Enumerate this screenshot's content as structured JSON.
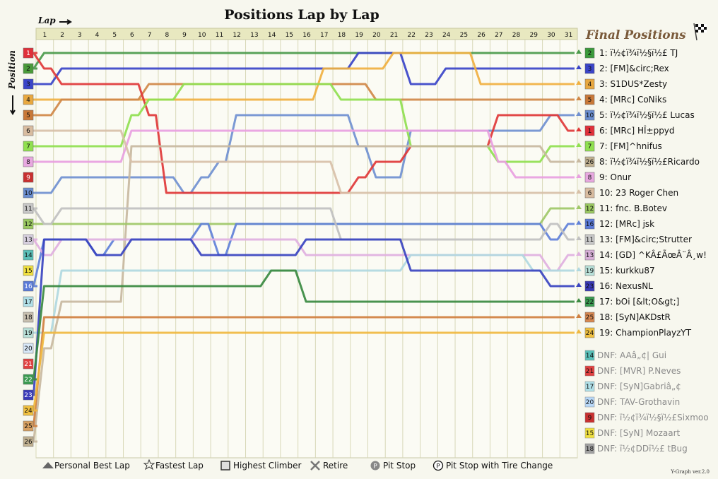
{
  "chart_data": {
    "type": "line",
    "title": "Positions Lap by Lap",
    "xlabel": "Lap",
    "ylabel": "Position",
    "laps": [
      1,
      2,
      3,
      4,
      5,
      6,
      7,
      8,
      9,
      10,
      11,
      12,
      13,
      14,
      15,
      16,
      17,
      18,
      19,
      20,
      21,
      22,
      23,
      24,
      25,
      26,
      27,
      28,
      29,
      30,
      31
    ],
    "position_labels": [
      1,
      2,
      3,
      4,
      5,
      6,
      7,
      8,
      9,
      10,
      11,
      12,
      13,
      14,
      15,
      16,
      17,
      18,
      19,
      20,
      21,
      22,
      23,
      24,
      25,
      26
    ],
    "grid_colors": [
      "#e0303a",
      "#4a9a3a",
      "#3a44c8",
      "#e8a840",
      "#c87838",
      "#d8bca0",
      "#90e050",
      "#e8a8e0",
      "#c83030",
      "#6a8ed0",
      "#c8c8c8",
      "#9ac860",
      "#d8d0e0",
      "#5ac0b8",
      "#f0e040",
      "#5a7ad8",
      "#b0e0e8",
      "#c8c0b0",
      "#b8e0d8",
      "#d8e8f8",
      "#e04040",
      "#3a9a50",
      "#3a3ab8",
      "#f0c040",
      "#d8a060",
      "#c0b090"
    ],
    "final_positions_title": "Final Positions",
    "final_positions": [
      {
        "grid": "2",
        "pos": "1",
        "name": "ï½¢ï¾ï½§ï½£ TJ",
        "color": "#3a9a3a",
        "line": "#4a9a4a"
      },
      {
        "grid": "3",
        "pos": "2",
        "name": "[FM]&circ;Rex",
        "color": "#3a44c8",
        "line": "#3a44c8"
      },
      {
        "grid": "4",
        "pos": "3",
        "name": "S1DUS*Zesty",
        "color": "#e8a840",
        "line": "#f0b040"
      },
      {
        "grid": "5",
        "pos": "4",
        "name": "[MRc] CoNiks",
        "color": "#c87838",
        "line": "#d08848"
      },
      {
        "grid": "10",
        "pos": "5",
        "name": "ï½¢ï¾ï½§ï½£ Lucas",
        "color": "#6a8ed0",
        "line": "#7090d0"
      },
      {
        "grid": "1",
        "pos": "6",
        "name": "[MRc] HÎ±ppyd",
        "color": "#e0303a",
        "line": "#e03838"
      },
      {
        "grid": "7",
        "pos": "7",
        "name": "[FM]^hnifus",
        "color": "#90e050",
        "line": "#90e050"
      },
      {
        "grid": "26",
        "pos": "8",
        "name": "ï½¢ï¾ï½§ï½£Ricardo",
        "color": "#c0b090",
        "line": "#c8b8a0"
      },
      {
        "grid": "8",
        "pos": "9",
        "name": "Onur",
        "color": "#e8a8e0",
        "line": "#e8a0e0"
      },
      {
        "grid": "6",
        "pos": "10",
        "name": "23 Roger Chen",
        "color": "#d8bca0",
        "line": "#d8c0a8"
      },
      {
        "grid": "12",
        "pos": "11",
        "name": "fnc. B.Botev",
        "color": "#9ac860",
        "line": "#a0c868"
      },
      {
        "grid": "16",
        "pos": "12",
        "name": "[MRc] jsk",
        "color": "#5a7ad8",
        "line": "#6080d8"
      },
      {
        "grid": "11",
        "pos": "13",
        "name": "[FM]&circ;Strutter",
        "color": "#c8c8c8",
        "line": "#c0c0c0"
      },
      {
        "grid": "13",
        "pos": "14",
        "name": "[GD] ^KÂ£ÃœÂ¨Â¸w!",
        "color": "#d8b0d8",
        "line": "#e0b0e0"
      },
      {
        "grid": "19",
        "pos": "15",
        "name": "kurkku87",
        "color": "#b8e0d8",
        "line": "#b0d8e0"
      },
      {
        "grid": "23",
        "pos": "16",
        "name": "NexusNL",
        "color": "#3a3ab8",
        "line": "#3a44c0"
      },
      {
        "grid": "22",
        "pos": "17",
        "name": "bOi [&lt;O&gt;]",
        "color": "#3a9a50",
        "line": "#3a8a40"
      },
      {
        "grid": "25",
        "pos": "18",
        "name": "[SyN]AKDstR",
        "color": "#d88850",
        "line": "#d08040"
      },
      {
        "grid": "24",
        "pos": "19",
        "name": "ChampionPlayzYT",
        "color": "#f0c040",
        "line": "#f0b840"
      }
    ],
    "dnf": [
      {
        "grid": "14",
        "label": "DNF: AAâ„¢| Gui",
        "color": "#5ac0b8"
      },
      {
        "grid": "21",
        "label": "DNF: [MVR] P.Neves",
        "color": "#e04040"
      },
      {
        "grid": "17",
        "label": "DNF: [SyN]Gabriâ„¢",
        "color": "#b0e0e8"
      },
      {
        "grid": "20",
        "label": "DNF: TAV-Grothavin",
        "color": "#b8d8f8"
      },
      {
        "grid": "9",
        "label": "DNF: ï½¢ï¾ï½§ï½£Sixmoo",
        "color": "#c83030"
      },
      {
        "grid": "15",
        "label": "DNF: [SyN] Mozaart",
        "color": "#f0e040"
      },
      {
        "grid": "18",
        "label": "DNF: ï½¢DDï½£ tBug",
        "color": "#a0a0a0"
      }
    ],
    "series": [
      {
        "name": "ï½¢ï¾ï½§ï½£ TJ",
        "color": "#4a9a4a",
        "values": [
          2,
          1,
          1,
          1,
          1,
          1,
          1,
          1,
          1,
          1,
          1,
          1,
          1,
          1,
          1,
          1,
          1,
          1,
          1,
          1,
          1,
          1,
          1,
          1,
          1,
          1,
          1,
          1,
          1,
          1,
          1,
          1
        ]
      },
      {
        "name": "[FM]&circ;Rex",
        "color": "#3a44c8",
        "values": [
          3,
          3,
          2,
          2,
          2,
          2,
          2,
          2,
          2,
          2,
          2,
          2,
          2,
          2,
          2,
          2,
          2,
          2,
          2,
          1,
          1,
          1,
          3,
          3,
          2,
          2,
          2,
          2,
          2,
          2,
          2,
          2
        ]
      },
      {
        "name": "S1DUS*Zesty",
        "color": "#f0b040",
        "values": [
          4,
          4,
          4,
          4,
          4,
          4,
          4,
          4,
          4,
          4,
          4,
          4,
          4,
          4,
          4,
          4,
          4,
          2,
          2,
          2,
          2,
          1,
          1,
          1,
          1,
          1,
          3,
          3,
          3,
          3,
          3,
          3
        ]
      },
      {
        "name": "[MRc] CoNiks",
        "color": "#d08848",
        "values": [
          5,
          5,
          4,
          4,
          4,
          4,
          4,
          3,
          3,
          3,
          3,
          3,
          3,
          3,
          3,
          3,
          3,
          3,
          3,
          3,
          4,
          4,
          4,
          4,
          4,
          4,
          4,
          4,
          4,
          4,
          4,
          4
        ]
      },
      {
        "name": "ï½¢ï¾ï½§ï½£ Lucas",
        "color": "#7090d0",
        "values": [
          10,
          10,
          9,
          9,
          9,
          9,
          9,
          9,
          9,
          10,
          9,
          8,
          5,
          5,
          5,
          5,
          5,
          5,
          5,
          7,
          9,
          9,
          6,
          6,
          6,
          6,
          6,
          6,
          6,
          6,
          5,
          5
        ]
      },
      {
        "name": "[MRc] HÎ±ppyd",
        "color": "#e03838",
        "values": [
          1,
          2,
          3,
          3,
          3,
          3,
          3,
          5,
          10,
          10,
          10,
          10,
          10,
          10,
          10,
          10,
          10,
          10,
          10,
          9,
          8,
          8,
          7,
          7,
          7,
          7,
          7,
          5,
          5,
          5,
          5,
          6
        ]
      },
      {
        "name": "[FM]^hnifus",
        "color": "#90e050",
        "values": [
          7,
          7,
          7,
          7,
          7,
          7,
          5,
          4,
          4,
          3,
          3,
          3,
          3,
          3,
          3,
          3,
          3,
          3,
          4,
          4,
          4,
          4,
          7,
          7,
          7,
          7,
          7,
          8,
          8,
          8,
          7,
          7
        ]
      },
      {
        "name": "ï½¢ï¾ï½§ï½£Ricardo",
        "color": "#c8b8a0",
        "values": [
          26,
          20,
          17,
          17,
          17,
          17,
          7,
          7,
          7,
          7,
          7,
          7,
          7,
          7,
          7,
          7,
          7,
          7,
          7,
          7,
          7,
          7,
          7,
          7,
          7,
          7,
          7,
          7,
          7,
          7,
          8,
          8
        ]
      },
      {
        "name": "Onur",
        "color": "#e8a0e0",
        "values": [
          8,
          8,
          8,
          8,
          8,
          8,
          6,
          6,
          6,
          6,
          6,
          6,
          6,
          6,
          6,
          6,
          6,
          6,
          6,
          6,
          6,
          6,
          6,
          6,
          6,
          6,
          6,
          8,
          9,
          9,
          9,
          9
        ]
      },
      {
        "name": "23 Roger Chen",
        "color": "#d8c0a8",
        "values": [
          6,
          6,
          6,
          6,
          6,
          6,
          8,
          8,
          8,
          8,
          8,
          8,
          8,
          8,
          8,
          8,
          8,
          8,
          10,
          10,
          10,
          10,
          10,
          10,
          10,
          10,
          10,
          10,
          10,
          10,
          10,
          10
        ]
      },
      {
        "name": "fnc. B.Botev",
        "color": "#a0c868",
        "values": [
          12,
          12,
          12,
          12,
          12,
          12,
          12,
          12,
          12,
          12,
          12,
          12,
          12,
          12,
          12,
          12,
          12,
          12,
          12,
          12,
          12,
          12,
          12,
          12,
          12,
          12,
          12,
          12,
          12,
          12,
          11,
          11
        ]
      },
      {
        "name": "[MRc] jsk",
        "color": "#6080d8",
        "values": [
          16,
          13,
          13,
          13,
          14,
          13,
          13,
          13,
          13,
          13,
          12,
          14,
          12,
          12,
          12,
          12,
          12,
          12,
          12,
          12,
          12,
          12,
          12,
          12,
          12,
          12,
          12,
          12,
          12,
          12,
          13,
          12
        ]
      },
      {
        "name": "[FM]&circ;Strutter",
        "color": "#c0c0c0",
        "values": [
          11,
          12,
          11,
          11,
          11,
          11,
          11,
          11,
          11,
          11,
          11,
          11,
          11,
          11,
          11,
          11,
          11,
          11,
          13,
          13,
          13,
          13,
          13,
          13,
          13,
          13,
          13,
          13,
          13,
          13,
          12,
          13
        ]
      },
      {
        "name": "[GD] ^KÂ£ÃœÂ¨Â¸w!",
        "color": "#e0b0e0",
        "values": [
          13,
          14,
          13,
          13,
          13,
          13,
          13,
          13,
          13,
          13,
          13,
          13,
          13,
          13,
          13,
          13,
          14,
          14,
          14,
          14,
          14,
          14,
          14,
          14,
          14,
          14,
          14,
          14,
          14,
          14,
          15,
          14
        ]
      },
      {
        "name": "kurkku87",
        "color": "#b0d8e0",
        "values": [
          19,
          19,
          15,
          15,
          15,
          15,
          15,
          15,
          15,
          15,
          15,
          15,
          15,
          15,
          15,
          15,
          15,
          15,
          15,
          15,
          15,
          15,
          14,
          14,
          14,
          14,
          14,
          14,
          14,
          15,
          15,
          15
        ]
      },
      {
        "name": "NexusNL",
        "color": "#3a44c0",
        "values": [
          23,
          13,
          13,
          13,
          14,
          14,
          13,
          13,
          13,
          13,
          14,
          14,
          14,
          14,
          14,
          14,
          13,
          13,
          13,
          13,
          13,
          13,
          15,
          15,
          15,
          15,
          15,
          15,
          15,
          15,
          16,
          16
        ]
      },
      {
        "name": "bOi [&lt;O&gt;]",
        "color": "#3a8a40",
        "values": [
          22,
          16,
          16,
          16,
          16,
          16,
          16,
          16,
          16,
          16,
          16,
          16,
          16,
          16,
          15,
          15,
          17,
          17,
          17,
          17,
          17,
          17,
          17,
          17,
          17,
          17,
          17,
          17,
          17,
          17,
          17,
          17
        ]
      },
      {
        "name": "[SyN]AKDstR",
        "color": "#d08040",
        "values": [
          25,
          18,
          18,
          18,
          18,
          18,
          18,
          18,
          18,
          18,
          18,
          18,
          18,
          18,
          18,
          18,
          18,
          18,
          18,
          18,
          18,
          18,
          18,
          18,
          18,
          18,
          18,
          18,
          18,
          18,
          18,
          18
        ]
      },
      {
        "name": "ChampionPlayzYT",
        "color": "#f0b840",
        "values": [
          24,
          19,
          19,
          19,
          19,
          19,
          19,
          19,
          19,
          19,
          19,
          19,
          19,
          19,
          19,
          19,
          19,
          19,
          19,
          19,
          19,
          19,
          19,
          19,
          19,
          19,
          19,
          19,
          19,
          19,
          19,
          19
        ]
      }
    ],
    "legend": [
      "Personal Best Lap",
      "Fastest Lap",
      "Highest Climber",
      "Retire",
      "Pit Stop",
      "Pit Stop with Tire Change"
    ],
    "version": "Y-Graph ver.2.0"
  }
}
